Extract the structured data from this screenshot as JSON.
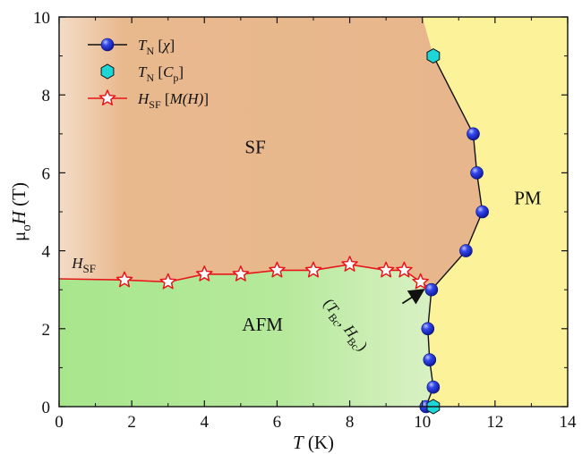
{
  "chart_data": {
    "type": "scatter",
    "xlim": [
      0,
      14
    ],
    "ylim": [
      0,
      10
    ],
    "xticks": [
      0,
      2,
      4,
      6,
      8,
      10,
      12,
      14
    ],
    "yticks": [
      0,
      2,
      4,
      6,
      8,
      10
    ],
    "xlabel": {
      "symbol": "T",
      "unit": " (K)"
    },
    "ylabel": {
      "prefix": "μ",
      "sub": "o",
      "symbol": "H",
      "unit": " (T)"
    },
    "grid": false,
    "legend_position": "top-left",
    "regions": {
      "sf": "SF",
      "afm": "AFM",
      "pm": "PM"
    },
    "annotations": {
      "hsf": {
        "symbol": "H",
        "sub": "SF"
      },
      "bicritical": {
        "symbol1": "T",
        "sub1": "Bc",
        "symbol2": "H",
        "sub2": "Bc"
      }
    },
    "series": [
      {
        "name": "TN [χ]",
        "legend": {
          "symbol": "T",
          "sub": "N",
          "bracket": "χ"
        },
        "marker": "sphere",
        "color": "#1f2fd6",
        "points": [
          [
            10.1,
            0.0
          ],
          [
            10.3,
            0.5
          ],
          [
            10.2,
            1.2
          ],
          [
            10.15,
            2.0
          ],
          [
            10.25,
            3.0
          ],
          [
            11.2,
            4.0
          ],
          [
            11.65,
            5.0
          ],
          [
            11.5,
            6.0
          ],
          [
            11.4,
            7.0
          ]
        ]
      },
      {
        "name": "TN [Cp]",
        "legend": {
          "symbol": "T",
          "sub": "N",
          "bracket": "C",
          "bracket_sub": "p"
        },
        "marker": "hexagon",
        "color": "#1ed6d6",
        "points": [
          [
            10.3,
            0.0
          ],
          [
            10.3,
            9.0
          ]
        ]
      },
      {
        "name": "HSF [M(H)]",
        "legend": {
          "symbol": "H",
          "sub": "SF",
          "bracket": "M(H)"
        },
        "marker": "star",
        "color": "#e8161a",
        "points": [
          [
            1.8,
            3.25
          ],
          [
            3.0,
            3.2
          ],
          [
            4.0,
            3.4
          ],
          [
            5.0,
            3.4
          ],
          [
            6.0,
            3.5
          ],
          [
            7.0,
            3.5
          ],
          [
            8.0,
            3.65
          ],
          [
            9.0,
            3.5
          ],
          [
            9.5,
            3.5
          ],
          [
            9.95,
            3.2
          ]
        ]
      }
    ],
    "hsf_line": [
      [
        0,
        3.28
      ],
      [
        1.8,
        3.25
      ],
      [
        3.0,
        3.2
      ],
      [
        4.0,
        3.4
      ],
      [
        5.0,
        3.4
      ],
      [
        6.0,
        3.5
      ],
      [
        7.0,
        3.5
      ],
      [
        8.0,
        3.65
      ],
      [
        9.0,
        3.5
      ],
      [
        9.5,
        3.5
      ],
      [
        9.95,
        3.2
      ],
      [
        10.25,
        3.0
      ]
    ],
    "tn_line": [
      [
        10.1,
        0.0
      ],
      [
        10.3,
        0.5
      ],
      [
        10.2,
        1.2
      ],
      [
        10.15,
        2.0
      ],
      [
        10.25,
        3.0
      ],
      [
        11.2,
        4.0
      ],
      [
        11.65,
        5.0
      ],
      [
        11.5,
        6.0
      ],
      [
        11.4,
        7.0
      ],
      [
        10.3,
        9.0
      ]
    ],
    "pm_boundary_top": [
      10.0,
      10.0
    ]
  }
}
